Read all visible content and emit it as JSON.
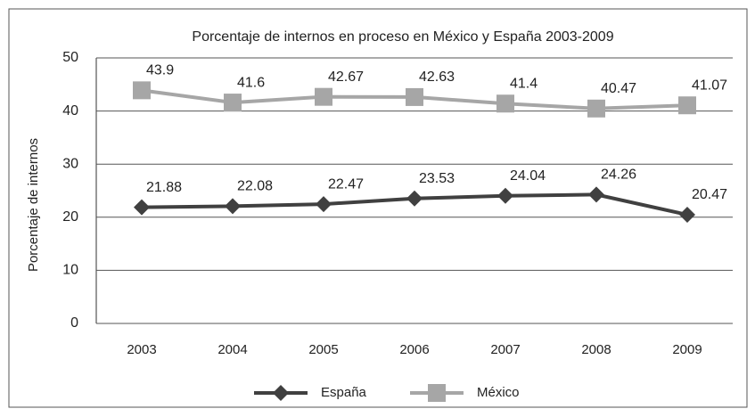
{
  "chart_data": {
    "type": "line",
    "title": "Porcentaje de internos  en proceso en México y España 2003-2009",
    "y_label": "Porcentaje de internos",
    "categories": [
      "2003",
      "2004",
      "2005",
      "2006",
      "2007",
      "2008",
      "2009"
    ],
    "series": [
      {
        "name": "España",
        "color": "#404040",
        "marker": "diamond",
        "values": [
          21.88,
          22.08,
          22.47,
          23.53,
          24.04,
          24.26,
          20.47
        ]
      },
      {
        "name": "México",
        "color": "#a6a6a6",
        "marker": "square",
        "values": [
          43.9,
          41.6,
          42.67,
          42.63,
          41.4,
          40.47,
          41.07
        ]
      }
    ],
    "ylim": [
      0,
      50
    ],
    "yticks": [
      0,
      10,
      20,
      30,
      40,
      50
    ],
    "grid": true,
    "legend": "bottom"
  }
}
